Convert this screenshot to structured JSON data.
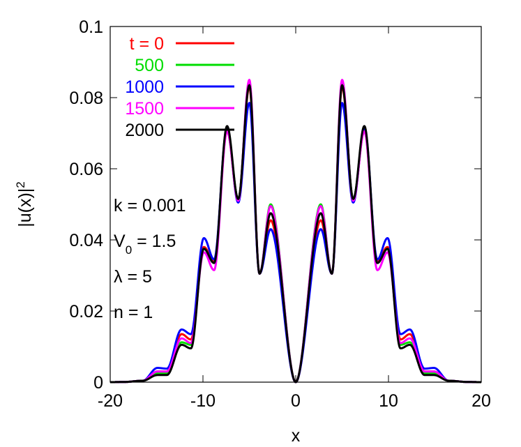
{
  "chart_data": {
    "type": "line",
    "xlabel": "x",
    "ylabel": "|u(x)|",
    "ylabel_sup": "2",
    "xlim": [
      -20,
      20
    ],
    "ylim": [
      0,
      0.1
    ],
    "xticks": [
      -20,
      -10,
      0,
      10,
      20
    ],
    "xtick_labels": [
      "-20",
      "-10",
      "0",
      "10",
      "20"
    ],
    "yticks": [
      0,
      0.02,
      0.04,
      0.06,
      0.08,
      0.1
    ],
    "ytick_labels": [
      "0",
      "0.02",
      "0.04",
      "0.06",
      "0.08",
      "0.1"
    ],
    "grid": false,
    "legend_position": "top-left",
    "series": [
      {
        "name": "t = 0",
        "color": "#ff0000",
        "peaks": [
          [
            2.7,
            0.0455
          ],
          [
            5.0,
            0.083
          ],
          [
            7.4,
            0.0705
          ],
          [
            9.9,
            0.038
          ],
          [
            12.3,
            0.0135
          ],
          [
            14.9,
            0.003
          ]
        ],
        "valleys": [
          [
            3.9,
            0.0305
          ],
          [
            6.2,
            0.0515
          ],
          [
            8.8,
            0.034
          ],
          [
            11.3,
            0.012
          ],
          [
            13.9,
            0.003
          ]
        ]
      },
      {
        "name": "500",
        "color": "#00dd00",
        "peaks": [
          [
            2.7,
            0.05
          ],
          [
            5.0,
            0.084
          ],
          [
            7.4,
            0.071
          ],
          [
            9.9,
            0.0375
          ],
          [
            12.3,
            0.0112
          ],
          [
            14.9,
            0.0025
          ]
        ],
        "valleys": [
          [
            3.9,
            0.0305
          ],
          [
            6.2,
            0.0515
          ],
          [
            8.8,
            0.0335
          ],
          [
            11.3,
            0.0105
          ],
          [
            13.9,
            0.0025
          ]
        ]
      },
      {
        "name": "1000",
        "color": "#0000ff",
        "peaks": [
          [
            2.7,
            0.043
          ],
          [
            5.0,
            0.0785
          ],
          [
            7.4,
            0.0715
          ],
          [
            9.9,
            0.0405
          ],
          [
            12.3,
            0.0148
          ],
          [
            14.9,
            0.004
          ]
        ],
        "valleys": [
          [
            3.9,
            0.0305
          ],
          [
            6.2,
            0.0505
          ],
          [
            8.8,
            0.0345
          ],
          [
            11.3,
            0.0135
          ],
          [
            13.9,
            0.0038
          ]
        ]
      },
      {
        "name": "1500",
        "color": "#ff00ff",
        "peaks": [
          [
            2.7,
            0.0495
          ],
          [
            5.0,
            0.085
          ],
          [
            7.4,
            0.0705
          ],
          [
            9.9,
            0.0365
          ],
          [
            12.3,
            0.0123
          ],
          [
            14.9,
            0.003
          ]
        ],
        "valleys": [
          [
            3.9,
            0.0305
          ],
          [
            6.2,
            0.051
          ],
          [
            8.8,
            0.0315
          ],
          [
            11.3,
            0.011
          ],
          [
            13.9,
            0.003
          ]
        ]
      },
      {
        "name": "2000",
        "color": "#000000",
        "peaks": [
          [
            2.7,
            0.0475
          ],
          [
            5.0,
            0.0835
          ],
          [
            7.4,
            0.072
          ],
          [
            9.9,
            0.0375
          ],
          [
            12.3,
            0.0105
          ],
          [
            14.9,
            0.002
          ]
        ],
        "valleys": [
          [
            3.9,
            0.0305
          ],
          [
            6.2,
            0.0515
          ],
          [
            8.8,
            0.0335
          ],
          [
            11.3,
            0.0095
          ],
          [
            13.9,
            0.002
          ]
        ]
      }
    ],
    "annotations": [
      {
        "id": "k",
        "text": "k = 0.001"
      },
      {
        "id": "v0",
        "prefix": "V",
        "sub": "0",
        "suffix": " = 1.5"
      },
      {
        "id": "lambda",
        "text": "λ = 5"
      },
      {
        "id": "n",
        "text": "n = 1"
      }
    ]
  }
}
